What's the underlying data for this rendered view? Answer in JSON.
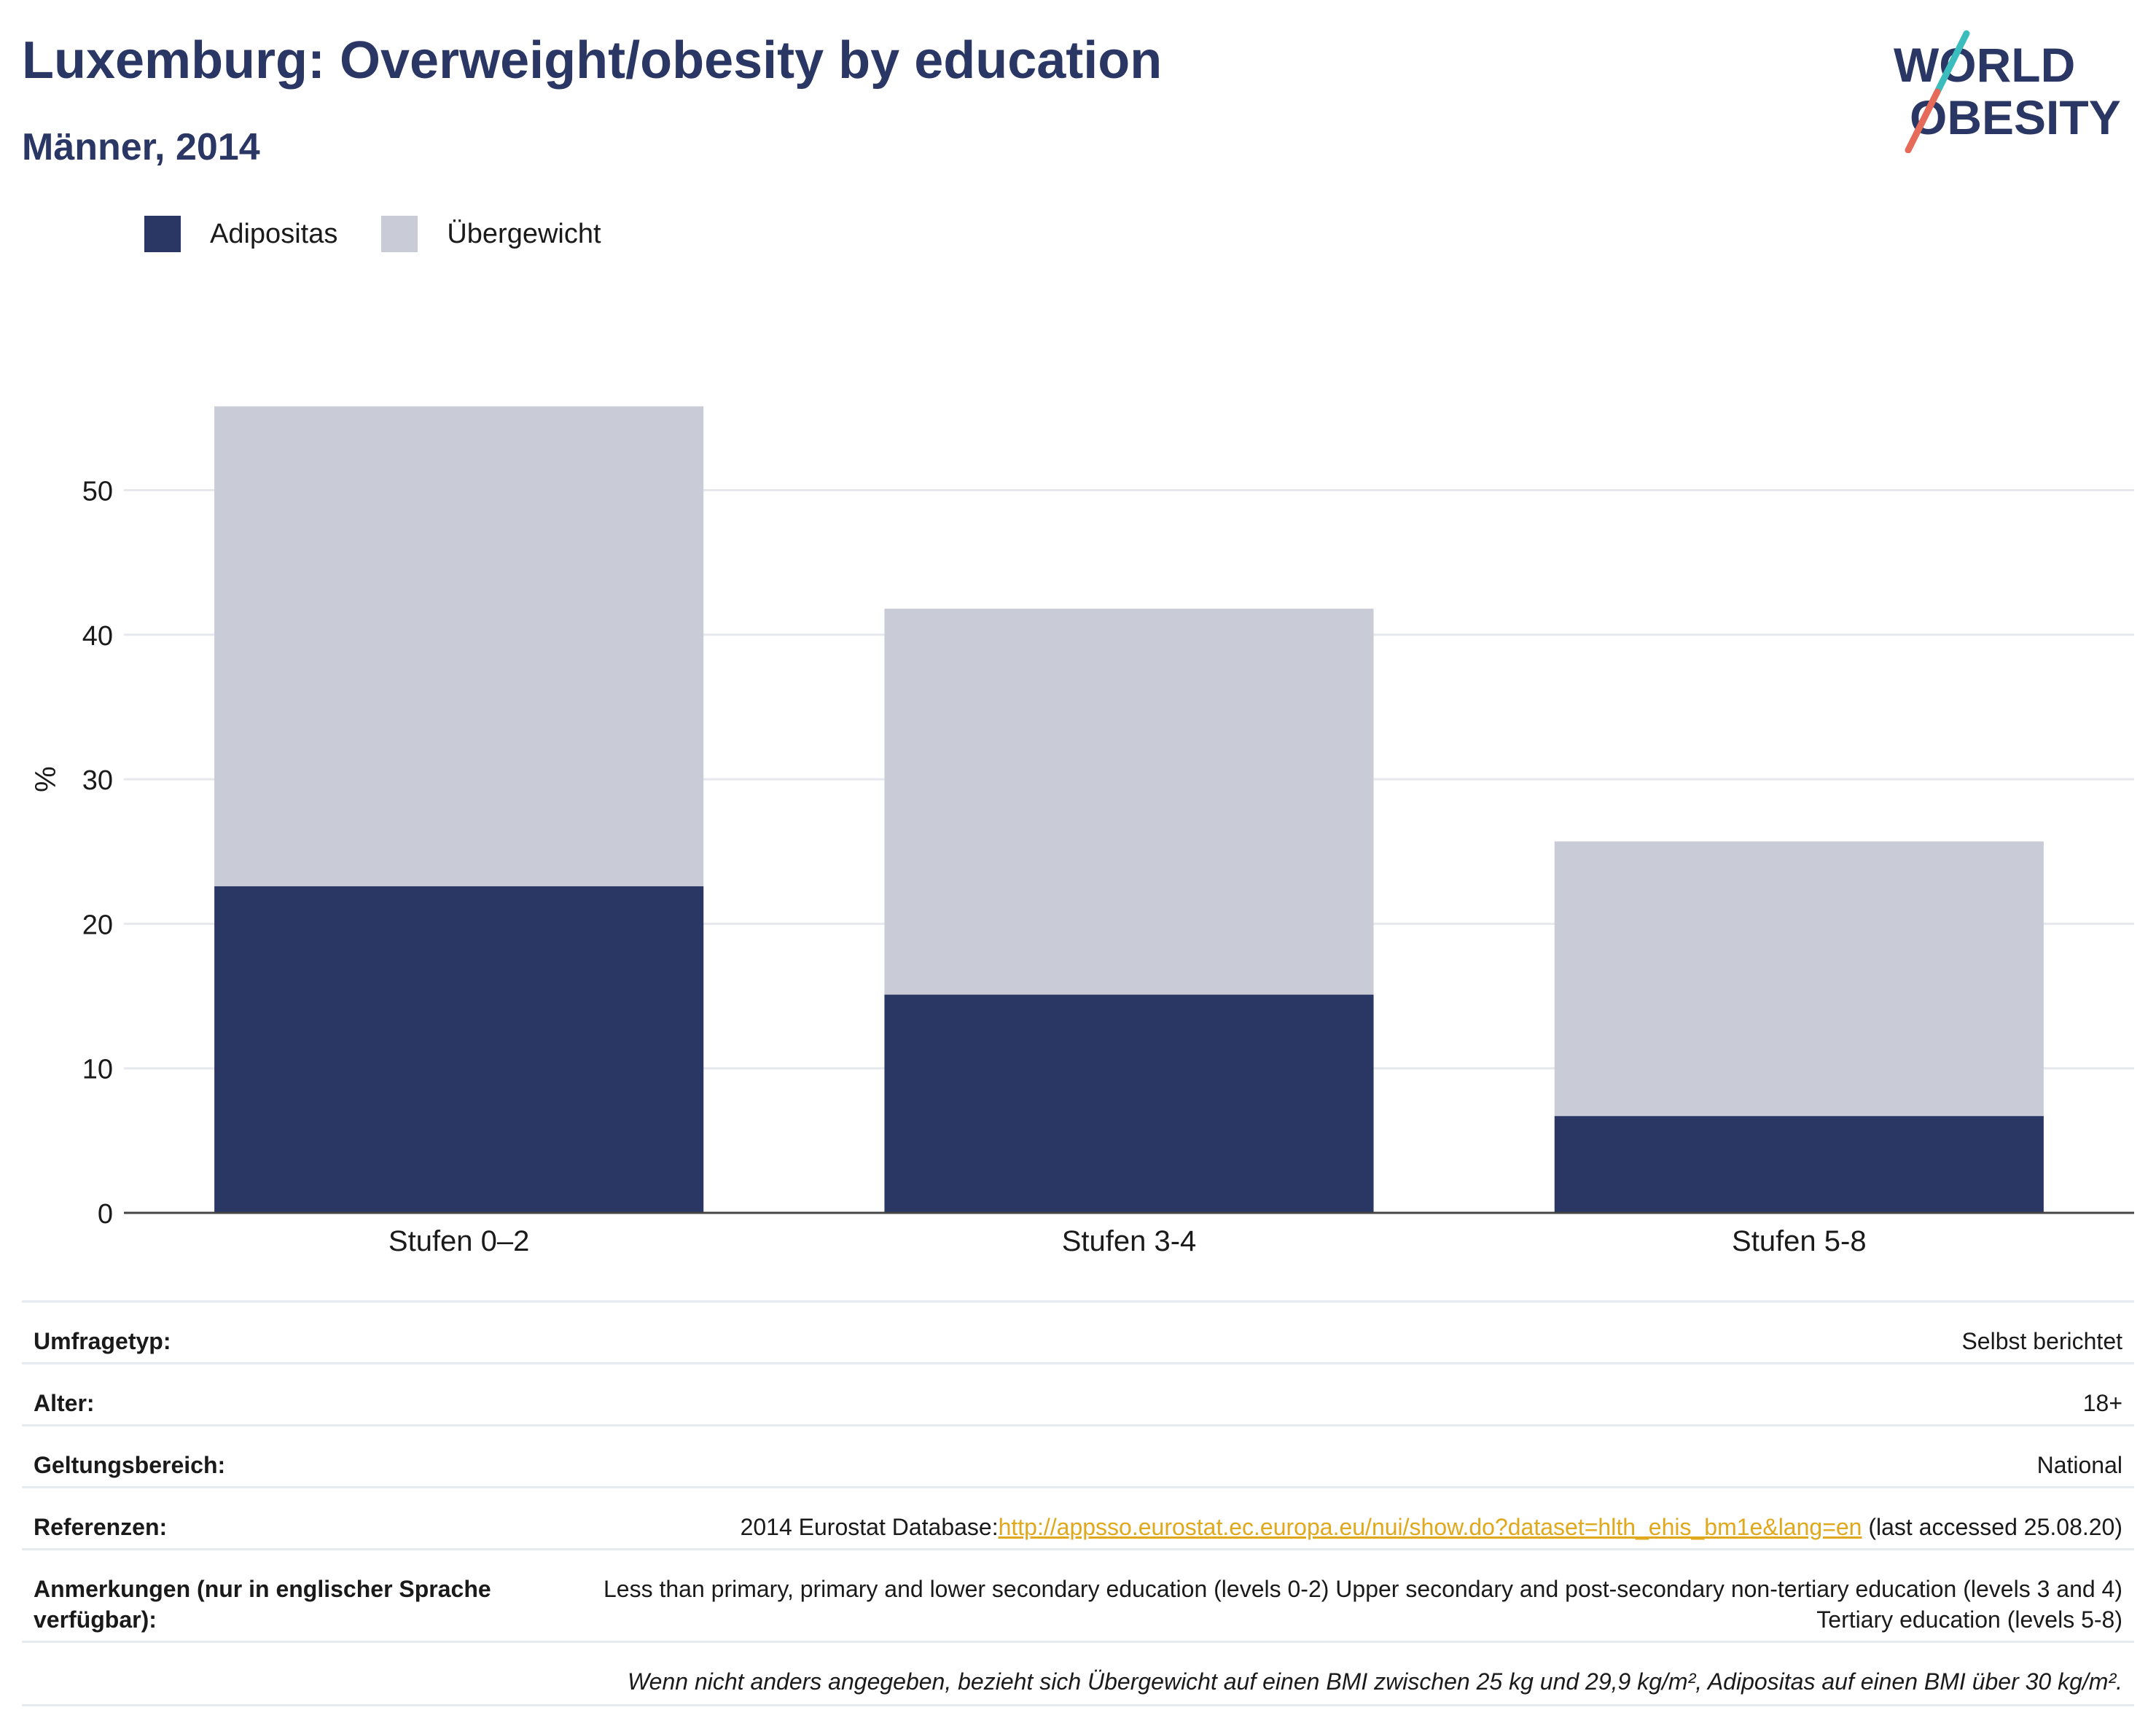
{
  "header": {
    "title": "Luxemburg: Overweight/obesity by education",
    "subtitle": "Männer, 2014"
  },
  "logo": {
    "line1": "WORLD",
    "line2": "OBESITY"
  },
  "colors": {
    "obesity": "#2a3664",
    "overweight": "#c9cbd7",
    "accent_teal": "#3cbdbd",
    "accent_red": "#e56a5a",
    "link": "#e0a81c"
  },
  "legend": [
    {
      "label": "Adipositas",
      "color": "#2a3664"
    },
    {
      "label": "Übergewicht",
      "color": "#c9cbd7"
    }
  ],
  "chart_data": {
    "type": "bar",
    "stacked": true,
    "categories": [
      "Stufen 0–2",
      "Stufen 3-4",
      "Stufen 5-8"
    ],
    "series": [
      {
        "name": "Adipositas",
        "values": [
          22.6,
          15.1,
          6.7
        ]
      },
      {
        "name": "Übergewicht",
        "values": [
          33.2,
          26.7,
          19.0
        ]
      }
    ],
    "ylabel": "%",
    "ylim": [
      0,
      60
    ],
    "yticks": [
      0,
      10,
      20,
      30,
      40,
      50
    ],
    "grid": true,
    "legend_position": "top-left"
  },
  "meta": {
    "survey_label": "Umfragetyp:",
    "survey_value": "Selbst berichtet",
    "age_label": "Alter:",
    "age_value": "18+",
    "scope_label": "Geltungsbereich:",
    "scope_value": "National",
    "ref_label": "Referenzen:",
    "ref_prefix": "2014 Eurostat Database:",
    "ref_link": "http://appsso.eurostat.ec.europa.eu/nui/show.do?dataset=hlth_ehis_bm1e&lang=en",
    "ref_suffix": " (last accessed 25.08.20)",
    "notes_label": "Anmerkungen (nur in englischer Sprache verfügbar):",
    "notes_value": "Less than primary, primary and lower secondary education (levels 0-2) Upper secondary and post-secondary non-tertiary education (levels 3 and 4) Tertiary education (levels 5-8)",
    "footnote": "Wenn nicht anders angegeben, bezieht sich Übergewicht auf einen BMI zwischen 25 kg und 29,9 kg/m², Adipositas auf einen BMI über 30 kg/m²."
  }
}
